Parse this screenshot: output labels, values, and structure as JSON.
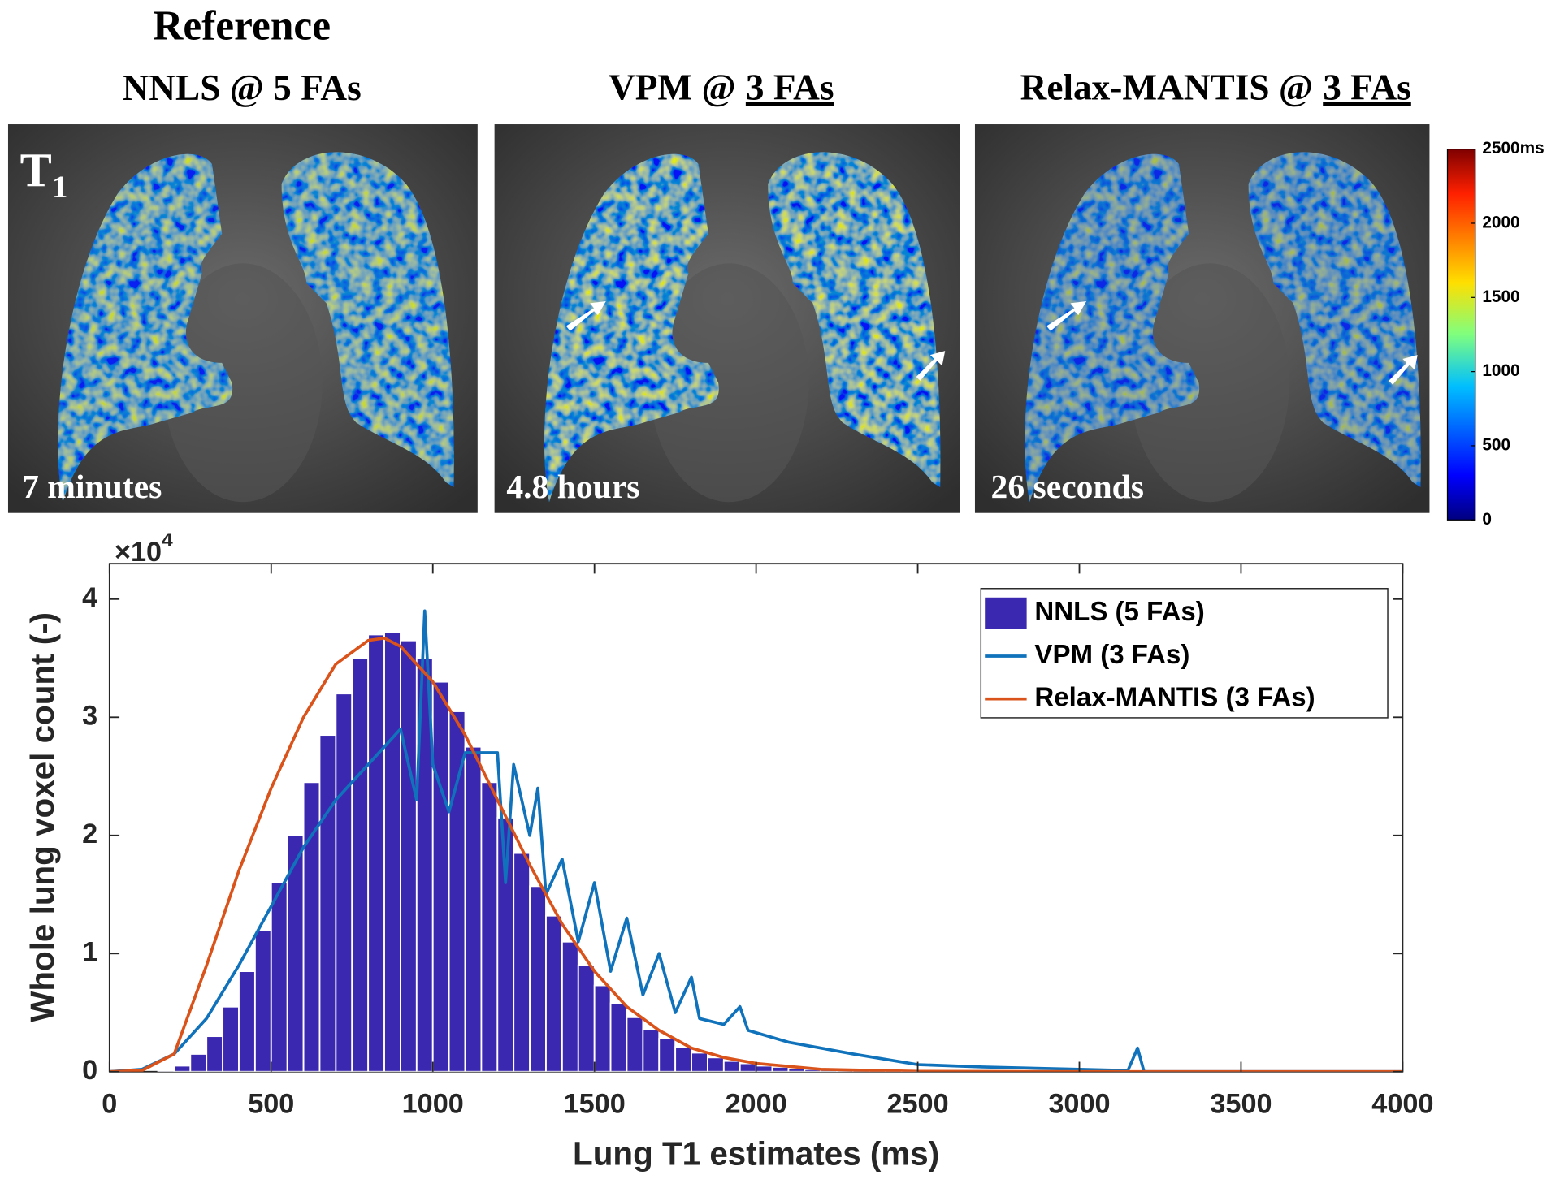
{
  "header": {
    "reference": "Reference"
  },
  "panels": [
    {
      "title": "NNLS @ 5 FAs",
      "time": "7 minutes"
    },
    {
      "method": "VPM @",
      "flip_angles": "3 FAs",
      "time": "4.8 hours"
    },
    {
      "method": "Relax-MANTIS @",
      "flip_angles": "3 FAs",
      "time": "26 seconds"
    }
  ],
  "image_label": {
    "symbol": "T",
    "subscript": "1"
  },
  "colorbar": {
    "lim": [
      0,
      2500
    ],
    "ticks": [
      0,
      500,
      1000,
      1500,
      2000,
      {
        "value": 2500,
        "label": "2500ms"
      }
    ]
  },
  "chart_data": {
    "type": "histogram",
    "x_label": "Lung T1 estimates (ms)",
    "y_label": "Whole lung voxel count (-)",
    "y_scale_label": "×10",
    "y_scale_exponent": "4",
    "xlim": [
      0,
      4000
    ],
    "ylim": [
      0,
      4.3
    ],
    "xticks": [
      0,
      500,
      1000,
      1500,
      2000,
      2500,
      3000,
      3500,
      4000
    ],
    "yticks": [
      0,
      1,
      2,
      3,
      4
    ],
    "legend": "upper right",
    "bins": [
      0,
      50,
      100,
      150,
      200,
      250,
      300,
      350,
      400,
      450,
      500,
      550,
      600,
      650,
      700,
      750,
      800,
      850,
      900,
      950,
      1000,
      1050,
      1100,
      1150,
      1200,
      1250,
      1300,
      1350,
      1400,
      1450,
      1500,
      1550,
      1600,
      1650,
      1700,
      1750,
      1800,
      1850,
      1900,
      1950,
      2000,
      2050,
      2100,
      2150,
      2200,
      2250,
      2300,
      2350,
      2400,
      2450,
      2500
    ],
    "series": [
      {
        "name": "NNLS (5 FAs)",
        "type": "histogram",
        "color": "#3b28b0",
        "values": [
          0,
          0,
          0,
          0.01,
          0.05,
          0.15,
          0.3,
          0.55,
          0.85,
          1.2,
          1.6,
          2.0,
          2.45,
          2.85,
          3.2,
          3.5,
          3.7,
          3.72,
          3.65,
          3.5,
          3.3,
          3.05,
          2.75,
          2.45,
          2.15,
          1.85,
          1.57,
          1.32,
          1.1,
          0.9,
          0.73,
          0.58,
          0.46,
          0.36,
          0.28,
          0.21,
          0.16,
          0.12,
          0.09,
          0.07,
          0.05,
          0.04,
          0.03,
          0.02,
          0.015,
          0.01,
          0.007,
          0.005,
          0.003,
          0.002
        ]
      },
      {
        "name": "VPM (3 FAs)",
        "type": "line",
        "color": "#0f72bb",
        "x": [
          0,
          100,
          200,
          300,
          400,
          500,
          600,
          700,
          800,
          900,
          950,
          975,
          1000,
          1050,
          1100,
          1200,
          1225,
          1250,
          1300,
          1325,
          1350,
          1400,
          1450,
          1500,
          1550,
          1600,
          1650,
          1700,
          1750,
          1800,
          1825,
          1900,
          1950,
          1975,
          2100,
          2300,
          2500,
          2700,
          3000,
          3150,
          3180,
          3200,
          4000
        ],
        "values": [
          0,
          0.02,
          0.15,
          0.45,
          0.9,
          1.4,
          1.9,
          2.3,
          2.6,
          2.9,
          2.3,
          3.9,
          2.6,
          2.2,
          2.7,
          2.7,
          1.6,
          2.6,
          2.0,
          2.4,
          1.5,
          1.8,
          1.1,
          1.6,
          0.85,
          1.3,
          0.65,
          1.0,
          0.5,
          0.8,
          0.45,
          0.4,
          0.55,
          0.35,
          0.25,
          0.15,
          0.06,
          0.04,
          0.02,
          0.01,
          0.2,
          0,
          0
        ]
      },
      {
        "name": "Relax-MANTIS (3 FAs)",
        "type": "line",
        "color": "#d9531a",
        "x": [
          0,
          100,
          200,
          300,
          400,
          500,
          600,
          700,
          800,
          850,
          900,
          1000,
          1100,
          1200,
          1300,
          1400,
          1500,
          1600,
          1700,
          1800,
          1900,
          2000,
          2200,
          2500,
          3000,
          4000
        ],
        "values": [
          0,
          0.01,
          0.15,
          0.9,
          1.7,
          2.4,
          3.0,
          3.45,
          3.65,
          3.67,
          3.6,
          3.3,
          2.85,
          2.3,
          1.75,
          1.25,
          0.85,
          0.55,
          0.35,
          0.2,
          0.12,
          0.07,
          0.02,
          0.003,
          0,
          0
        ]
      }
    ]
  }
}
